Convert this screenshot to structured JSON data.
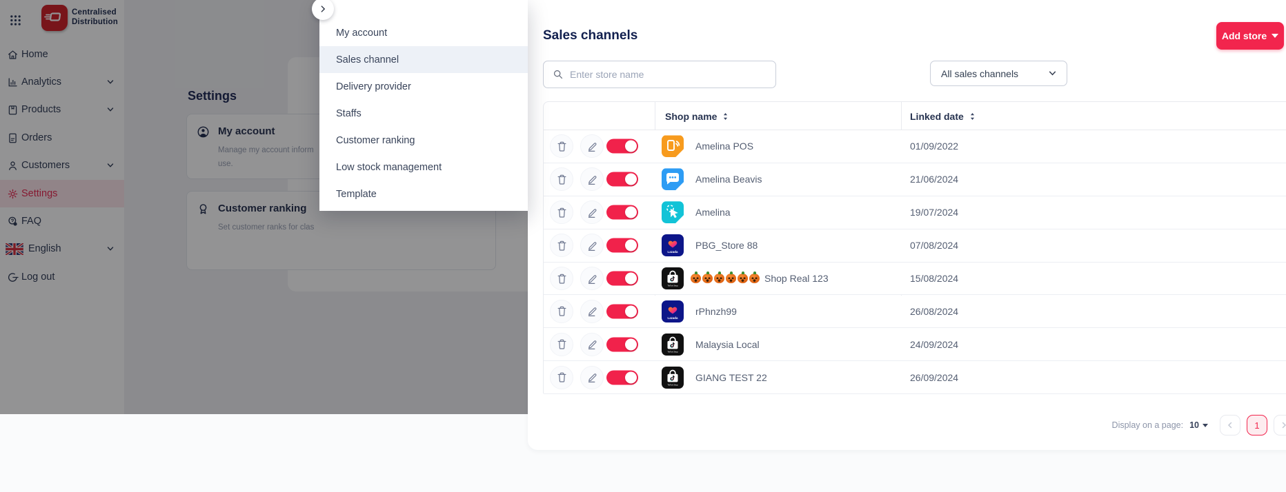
{
  "brand": {
    "line1": "Centralised",
    "line2": "Distribution"
  },
  "sidebar": {
    "items": [
      {
        "label": "Home",
        "icon": "home",
        "chevron": false,
        "active": false
      },
      {
        "label": "Analytics",
        "icon": "chart",
        "chevron": true,
        "active": false
      },
      {
        "label": "Products",
        "icon": "box",
        "chevron": true,
        "active": false
      },
      {
        "label": "Orders",
        "icon": "doc",
        "chevron": false,
        "active": false
      },
      {
        "label": "Customers",
        "icon": "person",
        "chevron": true,
        "active": false
      },
      {
        "label": "Settings",
        "icon": "gear",
        "chevron": false,
        "active": true
      },
      {
        "label": "FAQ",
        "icon": "faq",
        "chevron": false,
        "active": false
      },
      {
        "label": "English",
        "icon": "flag",
        "chevron": true,
        "active": false,
        "lang": true
      },
      {
        "label": "Log out",
        "icon": "logout",
        "chevron": false,
        "active": false
      }
    ]
  },
  "settings_page": {
    "title": "Settings",
    "cards": [
      {
        "title": "My account",
        "icon": "account",
        "desc_line1": "Manage my account inform",
        "desc_line2": "use."
      },
      {
        "title": "Customer ranking",
        "icon": "ranking",
        "desc_line1": "Set customer ranks for clas",
        "desc_line2": ""
      }
    ]
  },
  "flyout": {
    "items": [
      "My account",
      "Sales channel",
      "Delivery provider",
      "Staffs",
      "Customer ranking",
      "Low stock management",
      "Template"
    ],
    "selected": "Sales channel"
  },
  "main": {
    "title": "Sales channels",
    "search_placeholder": "Enter store name",
    "filter_value": "All sales channels",
    "add_store_label": "Add store",
    "table": {
      "columns": [
        "Shop name",
        "Linked date"
      ],
      "rows": [
        {
          "channel": "pos",
          "name": "Amelina POS",
          "date": "01/09/2022",
          "toggle_on": true
        },
        {
          "channel": "chat",
          "name": "Amelina Beavis",
          "date": "21/06/2024",
          "toggle_on": true
        },
        {
          "channel": "click",
          "name": "Amelina",
          "date": "19/07/2024",
          "toggle_on": true
        },
        {
          "channel": "lazada",
          "name": "PBG_Store 88",
          "date": "07/08/2024",
          "toggle_on": true
        },
        {
          "channel": "tiktok",
          "name": "Shop Real 123",
          "date": "15/08/2024",
          "toggle_on": true,
          "pumpkins": 6
        },
        {
          "channel": "lazada",
          "name": "rPhnzh99",
          "date": "26/08/2024",
          "toggle_on": true
        },
        {
          "channel": "tiktok",
          "name": "Malaysia Local",
          "date": "24/09/2024",
          "toggle_on": true
        },
        {
          "channel": "tiktok",
          "name": "GIANG TEST 22",
          "date": "26/09/2024",
          "toggle_on": true
        }
      ]
    },
    "pagination": {
      "label": "Display on a page:",
      "page_size": "10",
      "current_page": "1"
    }
  },
  "colors": {
    "accent_red": "#f2254d",
    "toggle_red": "#f1224b",
    "sidebar_active_bg": "#fbe4e9",
    "flyout_selected_bg": "#edf1f7",
    "lazada_navy": "#0d1689",
    "tiktok_black": "#111111",
    "pos_orange": "#f79b1e",
    "chat_blue": "#2d9cf4",
    "click_teal": "#12c3d7",
    "logo_red": "#cf1f27",
    "pagination_current_bg": "#fdecef"
  }
}
